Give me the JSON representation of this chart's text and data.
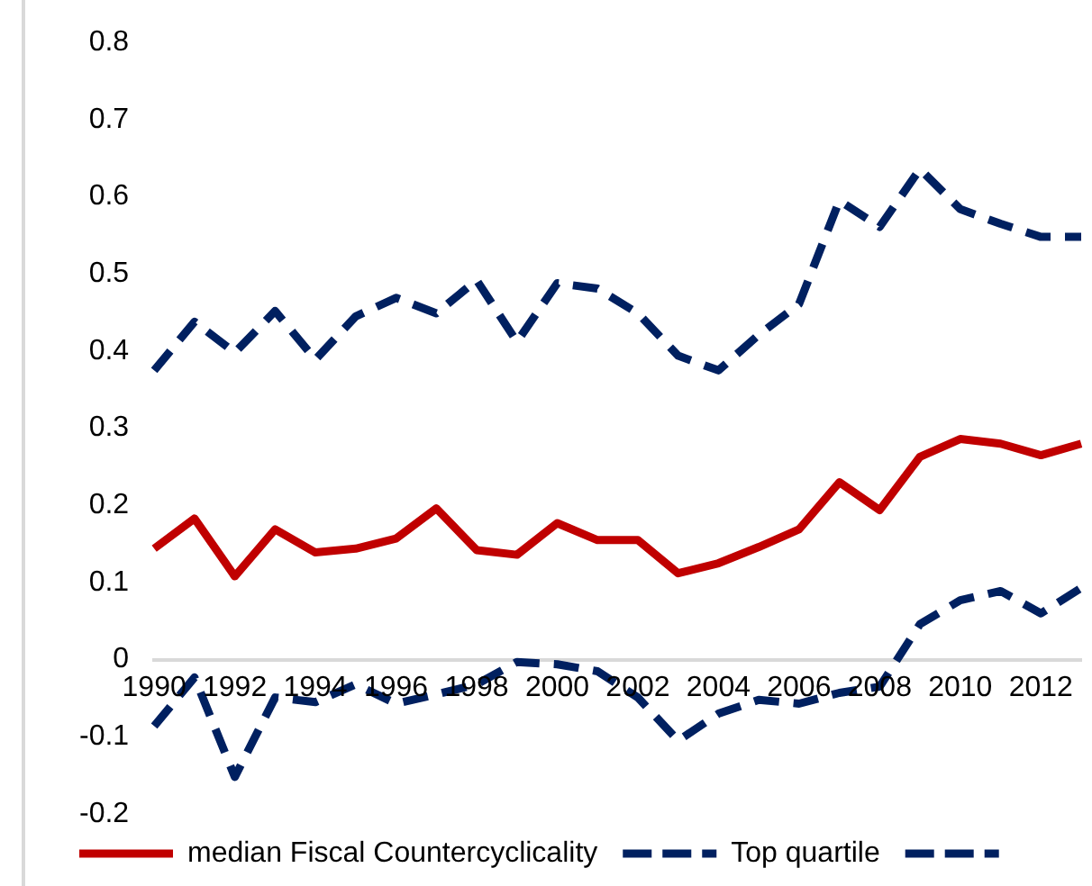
{
  "chart_data": {
    "type": "line",
    "categories": [
      "1990",
      null,
      "1992",
      null,
      "1994",
      null,
      "1996",
      null,
      "1998",
      null,
      "2000",
      null,
      "2002",
      null,
      "2004",
      null,
      "2006",
      null,
      "2008",
      null,
      "2010",
      null,
      "2012",
      null
    ],
    "series": [
      {
        "name": "median Fiscal Countercyclicality",
        "color": "#c00000",
        "line_style": "solid",
        "values": [
          0.144,
          0.183,
          0.108,
          0.169,
          0.139,
          0.144,
          0.157,
          0.196,
          0.142,
          0.136,
          0.177,
          0.155,
          0.155,
          0.112,
          0.125,
          0.146,
          0.169,
          0.23,
          0.194,
          0.263,
          0.286,
          0.28,
          0.265,
          0.28
        ]
      },
      {
        "name": "Top quartile",
        "color": "#002060",
        "line_style": "dashed",
        "values": [
          0.375,
          0.438,
          0.398,
          0.452,
          0.389,
          0.445,
          0.469,
          0.449,
          0.492,
          0.412,
          0.488,
          0.481,
          0.449,
          0.394,
          0.375,
          0.421,
          0.461,
          0.595,
          0.561,
          0.636,
          0.584,
          0.565,
          0.548,
          0.548
        ]
      },
      {
        "color": "#002060",
        "line_style": "dashed",
        "values": [
          -0.086,
          -0.023,
          -0.152,
          -0.049,
          -0.055,
          -0.032,
          -0.057,
          -0.045,
          -0.032,
          -0.003,
          -0.006,
          -0.015,
          -0.049,
          -0.105,
          -0.07,
          -0.052,
          -0.057,
          -0.043,
          -0.035,
          0.046,
          0.077,
          0.089,
          0.06,
          0.093
        ]
      }
    ],
    "ylim": [
      -0.2,
      0.8
    ],
    "yticks": [
      -0.2,
      -0.1,
      0,
      0.1,
      0.2,
      0.3,
      0.4,
      0.5,
      0.6,
      0.7,
      0.8
    ],
    "grid": false,
    "legend": "bottom",
    "marker": "none"
  }
}
